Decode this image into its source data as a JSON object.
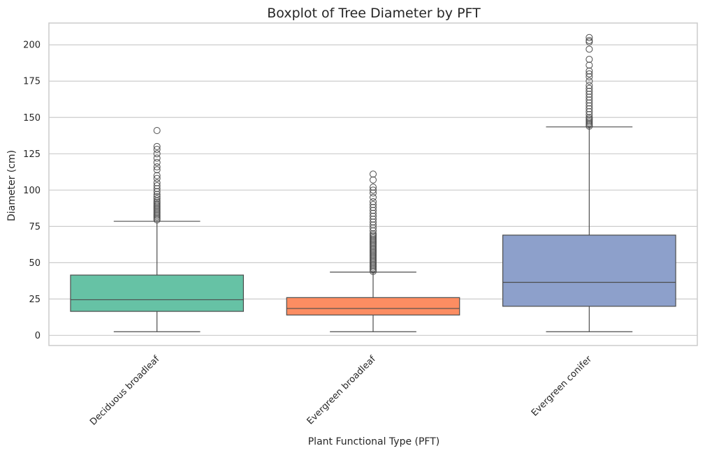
{
  "chart_data": {
    "type": "box",
    "title": "Boxplot of Tree Diameter by PFT",
    "xlabel": "Plant Functional Type (PFT)",
    "ylabel": "Diameter (cm)",
    "ylim": [
      -7,
      215
    ],
    "yticks": [
      0,
      25,
      50,
      75,
      100,
      125,
      150,
      175,
      200
    ],
    "grid": true,
    "categories": [
      "Deciduous broadleaf",
      "Evergreen broadleaf",
      "Evergreen conifer"
    ],
    "boxes": [
      {
        "category": "Deciduous broadleaf",
        "color": "#66c2a5",
        "whisker_low": 2.5,
        "q1": 16.5,
        "median": 24.5,
        "q3": 41.5,
        "whisker_high": 78.5,
        "outliers": [
          79.5,
          80.5,
          81.5,
          82.5,
          83.5,
          84.5,
          85.5,
          86.5,
          87.5,
          88.5,
          89.5,
          90.5,
          91.5,
          92.5,
          94,
          95.5,
          97,
          99,
          101,
          103,
          105,
          108,
          110,
          114,
          116,
          119,
          122,
          125,
          128,
          130,
          141
        ]
      },
      {
        "category": "Evergreen broadleaf",
        "color": "#fc8d62",
        "whisker_low": 2.5,
        "q1": 14,
        "median": 18.5,
        "q3": 26,
        "whisker_high": 43.5,
        "outliers": [
          44,
          45,
          46,
          47,
          48,
          49,
          50,
          51,
          52,
          53,
          54,
          55,
          56,
          57,
          58,
          59,
          60,
          61,
          62,
          63,
          64,
          65,
          66,
          67,
          68,
          69,
          70,
          72,
          74,
          76,
          78,
          80,
          82,
          84,
          86,
          88,
          90,
          92,
          95,
          98,
          100,
          102,
          107,
          111
        ]
      },
      {
        "category": "Evergreen conifer",
        "color": "#8da0cb",
        "whisker_low": 2.5,
        "q1": 20,
        "median": 36.5,
        "q3": 69,
        "whisker_high": 143.5,
        "outliers": [
          144,
          145,
          146,
          147,
          148,
          149,
          150,
          152,
          154,
          156,
          158,
          160,
          162,
          164,
          166,
          168,
          170,
          172,
          175,
          178,
          180,
          182,
          186,
          190,
          197,
          202,
          203,
          205
        ]
      }
    ]
  }
}
